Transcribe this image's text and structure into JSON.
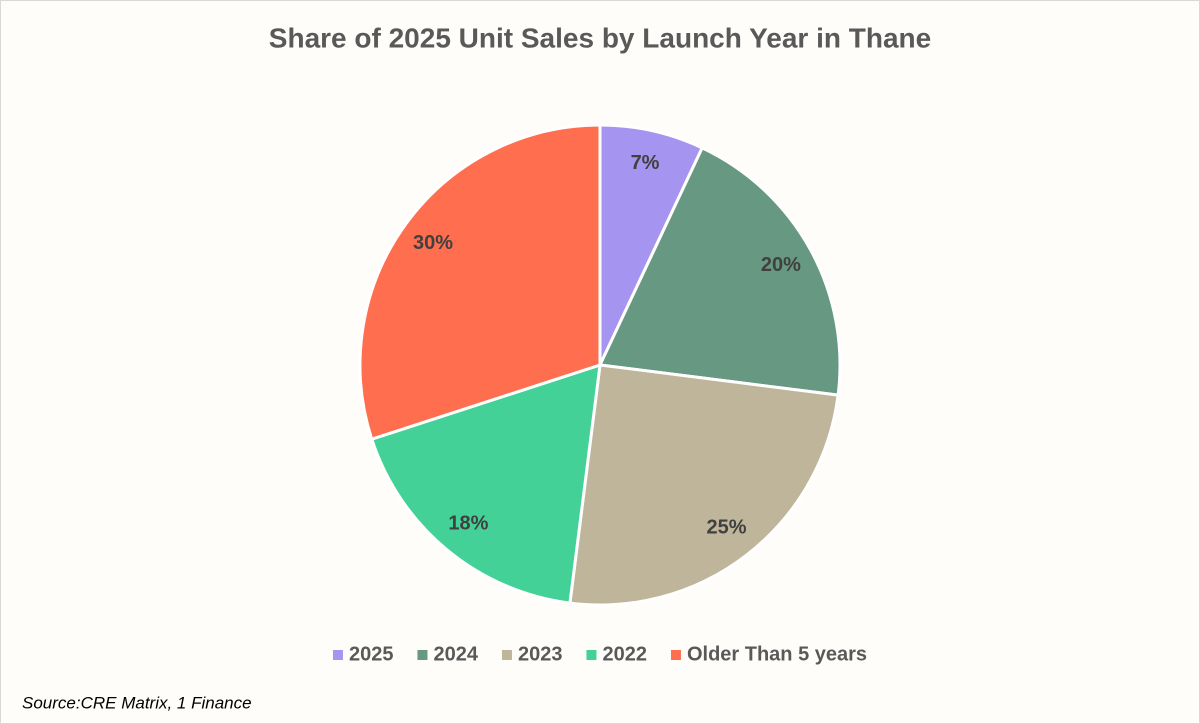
{
  "chart_data": {
    "type": "pie",
    "title": "Share of 2025 Unit Sales by Launch Year in Thane",
    "categories": [
      "2025",
      "2024",
      "2023",
      "2022",
      "Older Than 5 years"
    ],
    "values": [
      7,
      20,
      25,
      18,
      30
    ],
    "value_labels": [
      "7%",
      "20%",
      "25%",
      "18%",
      "30%"
    ],
    "colors": [
      "#a695f0",
      "#669882",
      "#bfb59a",
      "#44d197",
      "#ff6e4f"
    ],
    "legend": "bottom",
    "source": "Source:CRE Matrix, 1 Finance"
  }
}
